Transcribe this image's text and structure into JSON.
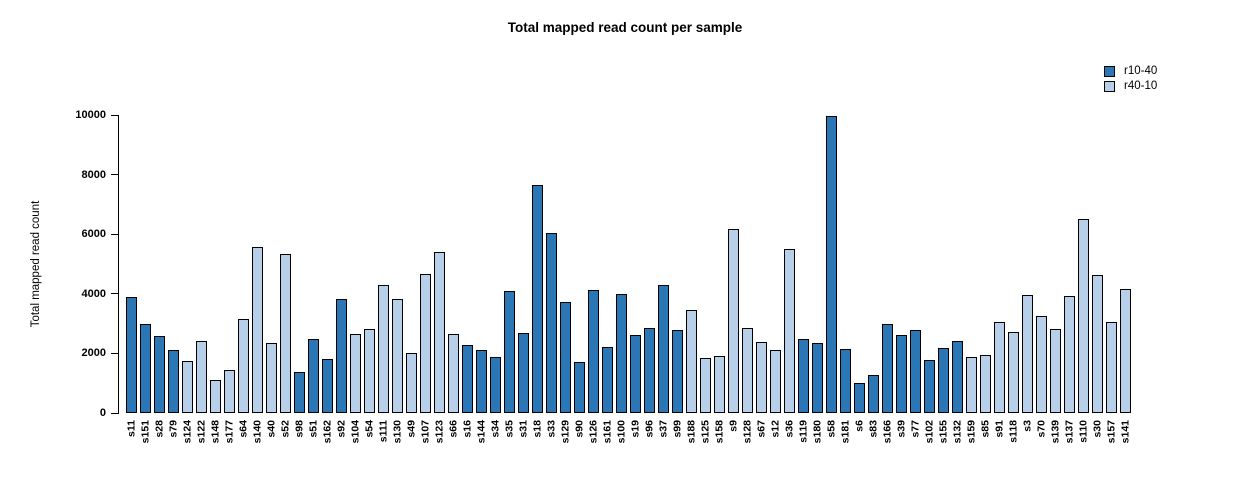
{
  "chart_data": {
    "type": "bar",
    "title": "Total mapped read count per sample",
    "xlabel": "",
    "ylabel": "Total mapped read count",
    "ylim": [
      0,
      10000
    ],
    "yticks": [
      0,
      2000,
      4000,
      6000,
      8000,
      10000
    ],
    "grid": false,
    "legend_position": "top-right",
    "legend": [
      {
        "name": "r10-40",
        "color": "#2B76B4"
      },
      {
        "name": "r40-10",
        "color": "#B7CFE9"
      }
    ],
    "bar_border_color": "#000000",
    "samples": [
      {
        "label": "s11",
        "value": 3890,
        "group": "r10-40"
      },
      {
        "label": "s151",
        "value": 2990,
        "group": "r10-40"
      },
      {
        "label": "s28",
        "value": 2590,
        "group": "r10-40"
      },
      {
        "label": "s79",
        "value": 2120,
        "group": "r10-40"
      },
      {
        "label": "s124",
        "value": 1740,
        "group": "r40-10"
      },
      {
        "label": "s122",
        "value": 2420,
        "group": "r40-10"
      },
      {
        "label": "s148",
        "value": 1110,
        "group": "r40-10"
      },
      {
        "label": "s177",
        "value": 1450,
        "group": "r40-10"
      },
      {
        "label": "s64",
        "value": 3140,
        "group": "r40-10"
      },
      {
        "label": "s140",
        "value": 5570,
        "group": "r40-10"
      },
      {
        "label": "s40",
        "value": 2360,
        "group": "r40-10"
      },
      {
        "label": "s52",
        "value": 5340,
        "group": "r40-10"
      },
      {
        "label": "s98",
        "value": 1380,
        "group": "r10-40"
      },
      {
        "label": "s51",
        "value": 2480,
        "group": "r10-40"
      },
      {
        "label": "s162",
        "value": 1800,
        "group": "r10-40"
      },
      {
        "label": "s92",
        "value": 3840,
        "group": "r10-40"
      },
      {
        "label": "s104",
        "value": 2650,
        "group": "r40-10"
      },
      {
        "label": "s54",
        "value": 2830,
        "group": "r40-10"
      },
      {
        "label": "s111",
        "value": 4290,
        "group": "r40-10"
      },
      {
        "label": "s130",
        "value": 3820,
        "group": "r40-10"
      },
      {
        "label": "s49",
        "value": 2020,
        "group": "r40-10"
      },
      {
        "label": "s107",
        "value": 4680,
        "group": "r40-10"
      },
      {
        "label": "s123",
        "value": 5400,
        "group": "r40-10"
      },
      {
        "label": "s66",
        "value": 2650,
        "group": "r40-10"
      },
      {
        "label": "s16",
        "value": 2280,
        "group": "r10-40"
      },
      {
        "label": "s144",
        "value": 2130,
        "group": "r10-40"
      },
      {
        "label": "s34",
        "value": 1870,
        "group": "r10-40"
      },
      {
        "label": "s35",
        "value": 4100,
        "group": "r10-40"
      },
      {
        "label": "s31",
        "value": 2680,
        "group": "r10-40"
      },
      {
        "label": "s18",
        "value": 7660,
        "group": "r10-40"
      },
      {
        "label": "s33",
        "value": 6040,
        "group": "r10-40"
      },
      {
        "label": "s129",
        "value": 3730,
        "group": "r10-40"
      },
      {
        "label": "s90",
        "value": 1700,
        "group": "r10-40"
      },
      {
        "label": "s126",
        "value": 4140,
        "group": "r10-40"
      },
      {
        "label": "s161",
        "value": 2230,
        "group": "r10-40"
      },
      {
        "label": "s100",
        "value": 4010,
        "group": "r10-40"
      },
      {
        "label": "s19",
        "value": 2630,
        "group": "r10-40"
      },
      {
        "label": "s96",
        "value": 2850,
        "group": "r10-40"
      },
      {
        "label": "s37",
        "value": 4300,
        "group": "r10-40"
      },
      {
        "label": "s99",
        "value": 2770,
        "group": "r10-40"
      },
      {
        "label": "s188",
        "value": 3440,
        "group": "r40-10"
      },
      {
        "label": "s125",
        "value": 1860,
        "group": "r40-10"
      },
      {
        "label": "s158",
        "value": 1920,
        "group": "r40-10"
      },
      {
        "label": "s9",
        "value": 6170,
        "group": "r40-10"
      },
      {
        "label": "s128",
        "value": 2840,
        "group": "r40-10"
      },
      {
        "label": "s67",
        "value": 2380,
        "group": "r40-10"
      },
      {
        "label": "s12",
        "value": 2120,
        "group": "r40-10"
      },
      {
        "label": "s36",
        "value": 5490,
        "group": "r40-10"
      },
      {
        "label": "s119",
        "value": 2480,
        "group": "r10-40"
      },
      {
        "label": "s180",
        "value": 2340,
        "group": "r10-40"
      },
      {
        "label": "s58",
        "value": 9950,
        "group": "r10-40"
      },
      {
        "label": "s181",
        "value": 2150,
        "group": "r10-40"
      },
      {
        "label": "s6",
        "value": 1000,
        "group": "r10-40"
      },
      {
        "label": "s83",
        "value": 1280,
        "group": "r10-40"
      },
      {
        "label": "s166",
        "value": 2990,
        "group": "r10-40"
      },
      {
        "label": "s39",
        "value": 2630,
        "group": "r10-40"
      },
      {
        "label": "s77",
        "value": 2770,
        "group": "r10-40"
      },
      {
        "label": "s102",
        "value": 1790,
        "group": "r10-40"
      },
      {
        "label": "s155",
        "value": 2180,
        "group": "r10-40"
      },
      {
        "label": "s132",
        "value": 2420,
        "group": "r10-40"
      },
      {
        "label": "s159",
        "value": 1870,
        "group": "r40-10"
      },
      {
        "label": "s85",
        "value": 1950,
        "group": "r40-10"
      },
      {
        "label": "s91",
        "value": 3060,
        "group": "r40-10"
      },
      {
        "label": "s118",
        "value": 2720,
        "group": "r40-10"
      },
      {
        "label": "s3",
        "value": 3970,
        "group": "r40-10"
      },
      {
        "label": "s70",
        "value": 3260,
        "group": "r40-10"
      },
      {
        "label": "s139",
        "value": 2820,
        "group": "r40-10"
      },
      {
        "label": "s137",
        "value": 3920,
        "group": "r40-10"
      },
      {
        "label": "s110",
        "value": 6510,
        "group": "r40-10"
      },
      {
        "label": "s30",
        "value": 4630,
        "group": "r40-10"
      },
      {
        "label": "s157",
        "value": 3070,
        "group": "r40-10"
      },
      {
        "label": "s141",
        "value": 4170,
        "group": "r40-10"
      }
    ]
  }
}
